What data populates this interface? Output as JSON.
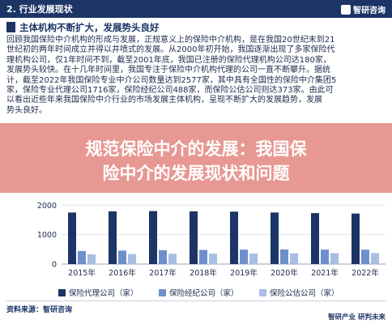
{
  "header": {
    "section_title": "2. 行业发展现状",
    "brand": "智研咨询"
  },
  "heading": "主体机构不断扩大，发展势头良好",
  "paragraph": [
    "回顾我国保险中介机构的形成与发展，正规意义上的保险中介机构，是在我国20世纪末到21",
    "世纪初的两年时间成立并得以井喷式的发展。从2000年初开始，我国逐渐出现了多家保险代",
    "理机构公司，仅1年时间不到，截至2001年底，我国已注册的保险代理机构公司达180家，",
    "发展势头较快。在十几年时间里，我国专注于保险中介机构代理的公司一直不断攀升。据统",
    "计，截至2022年我国保险专业中介公司数量达到2577家，其中具有全国性的保险中介集团5",
    "家，保险专业代理公司1716家，保险经纪公司488家，而保险公估公司则达373家。由此可",
    "以看出近些年来我国保险中介行业的市场发展主体机构，呈现不断扩大的发展趋势，发展",
    "势头良好。"
  ],
  "banner": {
    "line1": "规范保险中介的发展：我国保",
    "line2": "险中介的发展现状和问题"
  },
  "chart_data": {
    "type": "bar",
    "categories": [
      "2015年",
      "2016年",
      "2017年",
      "2018年",
      "2019年",
      "2020年",
      "2021年",
      "2022年"
    ],
    "series": [
      {
        "name": "保险代理公司（家）",
        "values": [
          1750,
          1790,
          1800,
          1790,
          1780,
          1750,
          1730,
          1716
        ]
      },
      {
        "name": "保险经纪公司（家）",
        "values": [
          445,
          457,
          470,
          480,
          490,
          495,
          491,
          488
        ]
      },
      {
        "name": "保险公估公司（家）",
        "values": [
          330,
          340,
          350,
          355,
          360,
          365,
          370,
          373
        ]
      }
    ],
    "yticks": [
      "0",
      "1000",
      "2000"
    ],
    "ylim": [
      0,
      2200
    ],
    "colors": [
      "#1c3566",
      "#6e8fcb",
      "#a9bee3"
    ],
    "legend_position": "bottom",
    "grid": true
  },
  "footer": {
    "source": "资料来源：智研咨询",
    "brand": "智研产业 研判未来"
  }
}
